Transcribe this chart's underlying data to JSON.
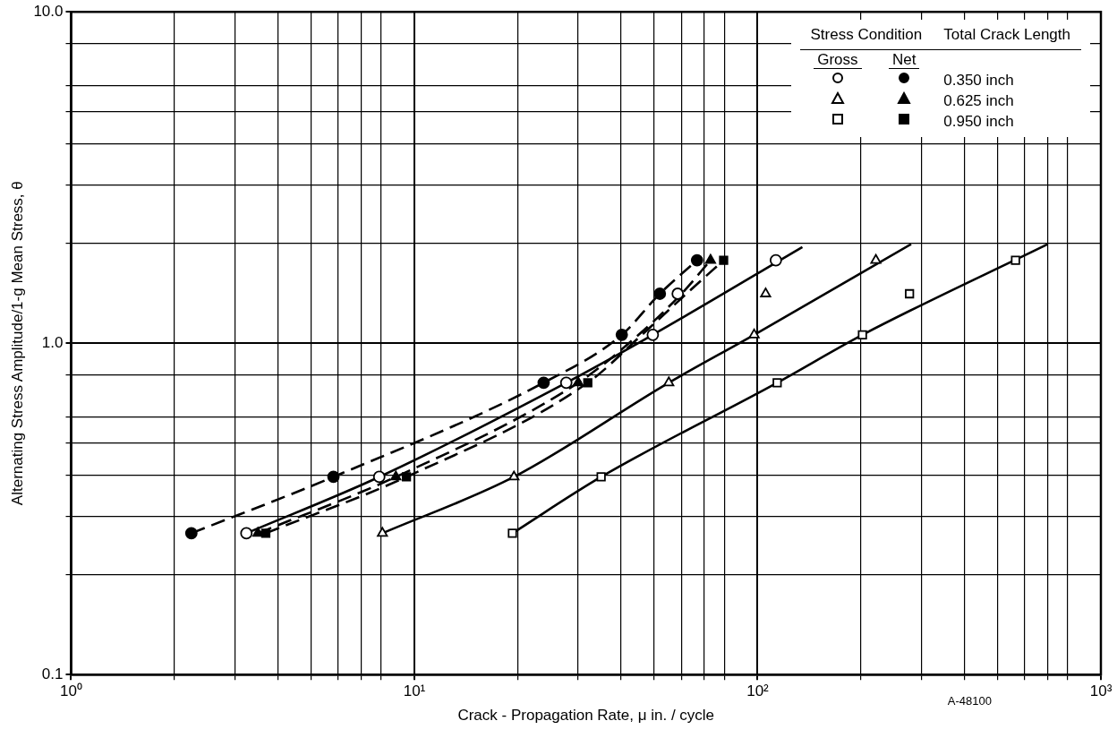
{
  "chart_data": {
    "type": "scatter",
    "xlabel": "Crack - Propagation Rate, μ in. / cycle",
    "ylabel": "Alternating Stress Amplitude/1-g Mean Stress, θ",
    "legend_title": "Stress Condition",
    "annotations": [
      "Total Crack Length",
      "Gross",
      "Net",
      "A-48100"
    ],
    "log": "xy",
    "grid": true,
    "legend": "top right",
    "xlim": [
      1,
      1000
    ],
    "ylim": [
      0.1,
      10
    ],
    "xticks": [
      {
        "value": 1,
        "label": "10⁰"
      },
      {
        "value": 2,
        "label": null
      },
      {
        "value": 3,
        "label": null
      },
      {
        "value": 4,
        "label": null
      },
      {
        "value": 5,
        "label": null
      },
      {
        "value": 6,
        "label": null
      },
      {
        "value": 7,
        "label": null
      },
      {
        "value": 8,
        "label": null
      },
      {
        "value": 10,
        "label": "10¹"
      },
      {
        "value": 20,
        "label": null
      },
      {
        "value": 30,
        "label": null
      },
      {
        "value": 40,
        "label": null
      },
      {
        "value": 50,
        "label": null
      },
      {
        "value": 60,
        "label": null
      },
      {
        "value": 70,
        "label": null
      },
      {
        "value": 80,
        "label": null
      },
      {
        "value": 100,
        "label": "10²"
      },
      {
        "value": 200,
        "label": null
      },
      {
        "value": 300,
        "label": null
      },
      {
        "value": 400,
        "label": null
      },
      {
        "value": 500,
        "label": null
      },
      {
        "value": 600,
        "label": null
      },
      {
        "value": 700,
        "label": null
      },
      {
        "value": 800,
        "label": null
      },
      {
        "value": 1000,
        "label": "10³"
      }
    ],
    "yticks": [
      {
        "value": 0.1,
        "label": "0.1"
      },
      {
        "value": 0.2,
        "label": null
      },
      {
        "value": 0.3,
        "label": null
      },
      {
        "value": 0.4,
        "label": null
      },
      {
        "value": 0.5,
        "label": null
      },
      {
        "value": 0.6,
        "label": null
      },
      {
        "value": 0.8,
        "label": null
      },
      {
        "value": 1,
        "label": "1.0"
      },
      {
        "value": 2,
        "label": null
      },
      {
        "value": 3,
        "label": null
      },
      {
        "value": 4,
        "label": null
      },
      {
        "value": 5,
        "label": null
      },
      {
        "value": 6,
        "label": null
      },
      {
        "value": 8,
        "label": null
      },
      {
        "value": 10,
        "label": "10.0"
      }
    ],
    "series": [
      {
        "marker": "circle",
        "color": "#ffffff",
        "x": [
          3.24,
          7.9,
          27.7,
          49.5,
          58.5,
          113
        ],
        "values": [
          0.267,
          0.395,
          0.76,
          1.06,
          1.41,
          1.78
        ]
      },
      {
        "marker": "triangle",
        "color": "#ffffff",
        "x": [
          8.07,
          19.5,
          55.1,
          97.7,
          105.5,
          221
        ],
        "values": [
          0.267,
          0.395,
          0.76,
          1.06,
          1.41,
          1.78
        ]
      },
      {
        "marker": "square",
        "color": "#ffffff",
        "x": [
          19.3,
          35,
          114,
          202,
          277,
          564
        ],
        "values": [
          0.267,
          0.395,
          0.76,
          1.06,
          1.41,
          1.78
        ]
      },
      {
        "name": "0.350 inch",
        "marker": "circle",
        "color": "#000000",
        "x": [
          2.24,
          5.81,
          23.8,
          40.2,
          51.9,
          66.6
        ],
        "values": [
          0.267,
          0.395,
          0.76,
          1.06,
          1.41,
          1.78
        ]
      },
      {
        "name": "0.625 inch",
        "marker": "triangle",
        "color": "#000000",
        "x": [
          3.5,
          8.83,
          30,
          72.9
        ],
        "values": [
          0.267,
          0.395,
          0.76,
          1.78
        ]
      },
      {
        "name": "0.950 inch",
        "marker": "square",
        "color": "#000000",
        "x": [
          3.69,
          9.48,
          32,
          79.6
        ],
        "values": [
          0.267,
          0.395,
          0.76,
          1.78
        ]
      },
      {
        "type": "line",
        "line_style": "solid",
        "marker": "none",
        "color": "#000000",
        "x": [
          3.24,
          7.9,
          27.7,
          49.5,
          135
        ],
        "values": [
          0.267,
          0.395,
          0.76,
          1.06,
          1.95
        ]
      },
      {
        "type": "line",
        "line_style": "solid",
        "marker": "none",
        "color": "#000000",
        "x": [
          8.07,
          19.5,
          55.1,
          97.7,
          280
        ],
        "values": [
          0.267,
          0.395,
          0.76,
          1.06,
          1.99
        ]
      },
      {
        "type": "line",
        "line_style": "solid",
        "marker": "none",
        "color": "#000000",
        "x": [
          19.3,
          35,
          114,
          202,
          700
        ],
        "values": [
          0.267,
          0.395,
          0.76,
          1.06,
          1.99
        ]
      },
      {
        "type": "line",
        "line_style": "dashed",
        "marker": "none",
        "color": "#000000",
        "x": [
          2.24,
          5.81,
          23.8,
          40.2,
          51.9,
          66.6
        ],
        "values": [
          0.267,
          0.395,
          0.76,
          1.06,
          1.41,
          1.78
        ]
      },
      {
        "type": "line",
        "line_style": "dashed",
        "marker": "none",
        "color": "#000000",
        "x": [
          3.5,
          8.83,
          30,
          45,
          60,
          72.9
        ],
        "values": [
          0.267,
          0.395,
          0.76,
          1.06,
          1.41,
          1.78
        ]
      },
      {
        "type": "line",
        "line_style": "dashed",
        "marker": "none",
        "color": "#000000",
        "x": [
          3.69,
          9.48,
          32,
          46,
          62,
          79.6
        ],
        "values": [
          0.267,
          0.395,
          0.76,
          1.06,
          1.41,
          1.78
        ]
      }
    ]
  }
}
